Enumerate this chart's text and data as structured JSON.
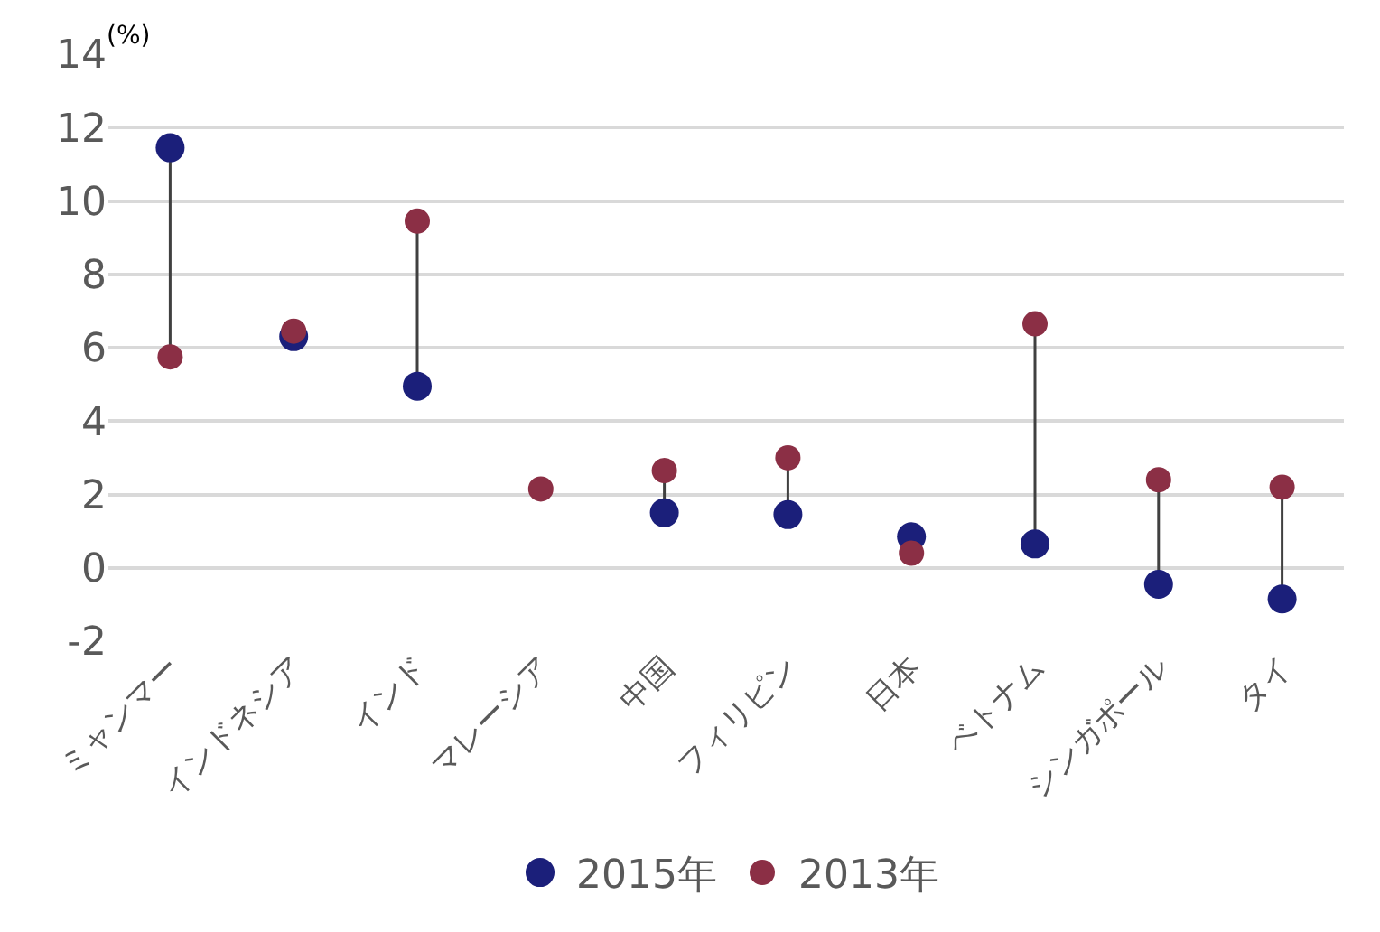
{
  "chart_data": {
    "type": "scatter",
    "ylabel": "(%)",
    "categories": [
      "ミャンマー",
      "インドネシア",
      "インド",
      "マレーシア",
      "中国",
      "フィリピン",
      "日本",
      "ベトナム",
      "シンガポール",
      "タイ"
    ],
    "series": [
      {
        "name": "2015年",
        "color": "#1b1f7a",
        "values": [
          11.45,
          6.3,
          4.95,
          null,
          1.5,
          1.45,
          0.85,
          0.65,
          -0.45,
          -0.85
        ]
      },
      {
        "name": "2013年",
        "color": "#8b2f45",
        "values": [
          5.75,
          6.45,
          9.45,
          2.15,
          2.65,
          3.0,
          0.4,
          6.65,
          2.4,
          2.2
        ]
      }
    ],
    "ylim": [
      -2,
      14
    ],
    "yticks": [
      -2,
      0,
      2,
      4,
      6,
      8,
      10,
      12,
      14
    ],
    "grid": "y",
    "legend": "bottom",
    "marker": "circle"
  }
}
